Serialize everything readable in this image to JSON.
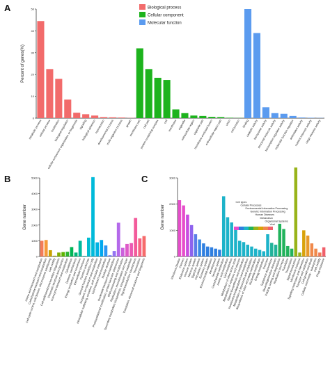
{
  "panels": {
    "a": {
      "letter": "A"
    },
    "b": {
      "letter": "B"
    },
    "c": {
      "letter": "C"
    }
  },
  "chart_data": [
    {
      "id": "A",
      "type": "bar",
      "ylabel": "Percent of genes(%)",
      "xlabel": "",
      "ylim": [
        0,
        50
      ],
      "yticks": [
        0,
        10,
        20,
        30,
        40,
        50
      ],
      "legend_position": "top-center",
      "series": [
        {
          "name": "Biological process",
          "color": "#f26b6b"
        },
        {
          "name": "Cellular component",
          "color": "#1db31d"
        },
        {
          "name": "Molecular function",
          "color": "#5b9bef"
        }
      ],
      "categories": [
        "metabolic process",
        "cellular process",
        "localization",
        "biological regulation",
        "cellular component organization or biogenesis",
        "signaling",
        "biological adhesion",
        "reproduction",
        "developmental process",
        "multi-organism process",
        "growth",
        "membrane part",
        "cell part",
        "protein-containing complex",
        "cell",
        "membrane",
        "organelle",
        "extracellular region",
        "organelle part",
        "membrane-enclosed lumen",
        "extracellular region part",
        "virion",
        "cell junction",
        "binding",
        "catalytic activity",
        "transporter activity",
        "structural molecule activity",
        "transcription regulator activity",
        "molecular function regulator",
        "antioxidant activity",
        "nutrient reservoir activity",
        "cargo receptor activity"
      ],
      "values": [
        44.5,
        22.5,
        18,
        8.5,
        2.5,
        1.8,
        1.2,
        0.5,
        0.4,
        0.3,
        0.1,
        32,
        22.5,
        18.5,
        17.5,
        4,
        2.3,
        1.2,
        1,
        0.6,
        0.5,
        0.2,
        0.1,
        50,
        39,
        5,
        2.3,
        2,
        1,
        0.3,
        0.2,
        0.1
      ],
      "series_index": [
        0,
        0,
        0,
        0,
        0,
        0,
        0,
        0,
        0,
        0,
        0,
        1,
        1,
        1,
        1,
        1,
        1,
        1,
        1,
        1,
        1,
        1,
        1,
        2,
        2,
        2,
        2,
        2,
        2,
        2,
        2,
        2
      ]
    },
    {
      "id": "B",
      "type": "bar",
      "ylabel": "Gene number",
      "xlabel": "",
      "ylim": [
        0,
        5000
      ],
      "yticks": [
        0,
        1000,
        2000,
        3000,
        4000,
        5000
      ],
      "categories": [
        "Amino acid transport and metabolism",
        "Carbohydrate transport and metabolism",
        "Cell cycle control, cell division, chromosome partitioning",
        "Cell motility",
        "Cell wall/membrane/envelope biogenesis",
        "Chromatin structure and dynamics",
        "Coenzyme transport and metabolism",
        "Cytoskeleton",
        "Defense mechanisms",
        "Energy production and conversion",
        "Extracellular structures",
        "Function unknown",
        "General function prediction only",
        "Inorganic ion transport and metabolism",
        "Intracellular trafficking, secretion, and vesicular transport",
        "Lipid transport and metabolism",
        "Nuclear structure",
        "Nucleotide transport and metabolism",
        "Posttranslational modification, protein turnover, chaperones",
        "RNA processing and modification",
        "Replication, recombination and repair",
        "Secondary metabolites biosynthesis, transport and catabolism",
        "Signal transduction mechanisms",
        "Transcription",
        "Translation, ribosomal structure and biogenesis"
      ],
      "values": [
        1000,
        1050,
        400,
        50,
        250,
        280,
        300,
        600,
        250,
        1000,
        40,
        1200,
        5050,
        900,
        1050,
        700,
        80,
        350,
        2150,
        550,
        800,
        850,
        2450,
        1150,
        1300
      ],
      "colors": [
        "#f47c58",
        "#f59a3a",
        "#c9a200",
        "#a3a800",
        "#82ae00",
        "#5cb400",
        "#2fb52f",
        "#00b556",
        "#00b77a",
        "#00b99c",
        "#00bbba",
        "#00bcd0",
        "#00bada",
        "#00b3e3",
        "#00a8ee",
        "#2d96f3",
        "#6b83f5",
        "#9474f2",
        "#b469ea",
        "#cb60dc",
        "#de5ac9",
        "#eb59b3",
        "#f35b9b",
        "#f76182",
        "#f66b6b"
      ]
    },
    {
      "id": "C",
      "type": "bar",
      "ylabel": "Gene number",
      "xlabel": "",
      "ylim": [
        0,
        3000
      ],
      "yticks": [
        0,
        1000,
        2000,
        3000
      ],
      "legend_position": "center",
      "series": [
        {
          "name": "Cell types",
          "color": "#e64ecb"
        },
        {
          "name": "Cellular Processes",
          "color": "#2f7fe0"
        },
        {
          "name": "Environmental Information Processing",
          "color": "#1db3c9"
        },
        {
          "name": "Genetic Information Processing",
          "color": "#21b35c"
        },
        {
          "name": "Human Diseases",
          "color": "#98b31a"
        },
        {
          "name": "Metabolism",
          "color": "#d9a20a"
        },
        {
          "name": "Organismal Systems",
          "color": "#f0894b"
        },
        {
          "name": "Viral",
          "color": "#f05f6a"
        }
      ],
      "categories": [
        "Infectious disease",
        "Cancers",
        "Endocrine system",
        "Immune system",
        "Nervous system",
        "Digestive system",
        "Circulatory system",
        "Excretory system",
        "Environmental adaptation",
        "Development",
        "Sensory system",
        "Carbohydrate metabolism",
        "Amino acid metabolism",
        "Lipid metabolism",
        "Metabolism of other amino acids",
        "Metabolism of cofactors and vitamins",
        "Glycan biosynthesis and metabolism",
        "Xenobiotics biodegradation and metabolism",
        "Metabolism of terpenoids and polyketides",
        "Biosynthesis of other secondary metabolites",
        "Nucleotide metabolism",
        "Energy metabolism",
        "Overview",
        "Substance dependence",
        "Neurodegenerative diseases",
        "Folding, sorting and degradation",
        "Replication and repair",
        "Translation",
        "Transcription",
        "Signal transduction",
        "Membrane transport",
        "Signaling molecules and interaction",
        "Transport and catabolism",
        "Cell growth and death",
        "Cellular community - eukaryotes",
        "Cell motility",
        "Drug resistance"
      ],
      "values": [
        2150,
        1950,
        1600,
        1200,
        850,
        650,
        500,
        380,
        350,
        300,
        260,
        2300,
        1500,
        1300,
        1100,
        600,
        550,
        450,
        380,
        300,
        250,
        200,
        850,
        520,
        450,
        1250,
        1050,
        400,
        300,
        3400,
        150,
        1000,
        800,
        500,
        300,
        150,
        350
      ],
      "colors": [
        "#e64ecb",
        "#e64ecb",
        "#c94ce0",
        "#8e63ee",
        "#5b7de8",
        "#3b8ae4",
        "#2f7fe0",
        "#2f7fe0",
        "#2f7fe0",
        "#2f7fe0",
        "#2f7fe0",
        "#1db3c9",
        "#1db3c9",
        "#1db3c9",
        "#1db3c9",
        "#1db3c9",
        "#1db3c9",
        "#1db3c9",
        "#1db3c9",
        "#1db3c9",
        "#1db3c9",
        "#1db3c9",
        "#1db3c9",
        "#21b39a",
        "#21b39a",
        "#21b35c",
        "#21b35c",
        "#21b35c",
        "#21b35c",
        "#98b31a",
        "#98b31a",
        "#d9a20a",
        "#e89a2a",
        "#f0894b",
        "#f0894b",
        "#f07a55",
        "#f05f6a"
      ]
    }
  ]
}
